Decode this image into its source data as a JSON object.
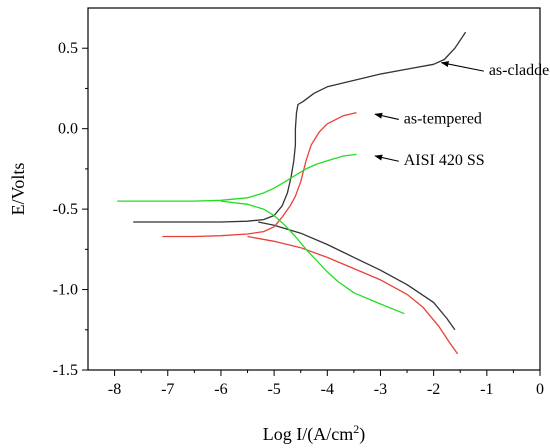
{
  "chart_data": {
    "type": "line",
    "title": "",
    "xlabel": "Log I/(A/cm",
    "xlabel_sup": "2",
    "xlabel_tail": ")",
    "ylabel": "E/Volts",
    "xlim": [
      -8.5,
      0
    ],
    "ylim": [
      -1.5,
      0.75
    ],
    "x_ticks": [
      -8,
      -7,
      -6,
      -5,
      -4,
      -3,
      -2,
      -1,
      0
    ],
    "x_tick_labels": [
      "-8",
      "-7",
      "-6",
      "-5",
      "-4",
      "-3",
      "-2",
      "-1",
      "0"
    ],
    "y_ticks": [
      -1.5,
      -1.0,
      -0.5,
      0.0,
      0.5
    ],
    "y_tick_labels": [
      "-1.5",
      "-1.0",
      "-0.5",
      "0.0",
      "0.5"
    ],
    "grid": false,
    "series": [
      {
        "name": "as-cladded",
        "color": "#333333",
        "points": [
          [
            -7.65,
            -0.58
          ],
          [
            -7.0,
            -0.58
          ],
          [
            -6.0,
            -0.58
          ],
          [
            -5.5,
            -0.575
          ],
          [
            -5.2,
            -0.565
          ],
          [
            -5.0,
            -0.54
          ],
          [
            -4.85,
            -0.48
          ],
          [
            -4.75,
            -0.4
          ],
          [
            -4.68,
            -0.3
          ],
          [
            -4.63,
            -0.2
          ],
          [
            -4.6,
            -0.1
          ],
          [
            -4.6,
            0.0
          ],
          [
            -4.58,
            0.1
          ],
          [
            -4.55,
            0.15
          ],
          [
            -4.45,
            0.17
          ],
          [
            -4.25,
            0.22
          ],
          [
            -4.0,
            0.26
          ],
          [
            -3.5,
            0.3
          ],
          [
            -3.0,
            0.34
          ],
          [
            -2.5,
            0.37
          ],
          [
            -2.0,
            0.4
          ],
          [
            -1.8,
            0.43
          ],
          [
            -1.6,
            0.5
          ],
          [
            -1.4,
            0.6
          ],
          null,
          [
            -5.3,
            -0.58
          ],
          [
            -5.0,
            -0.6
          ],
          [
            -4.5,
            -0.65
          ],
          [
            -4.0,
            -0.72
          ],
          [
            -3.5,
            -0.8
          ],
          [
            -3.0,
            -0.88
          ],
          [
            -2.5,
            -0.97
          ],
          [
            -2.0,
            -1.08
          ],
          [
            -1.75,
            -1.18
          ],
          [
            -1.6,
            -1.25
          ]
        ]
      },
      {
        "name": "as-tempered",
        "color": "#e8413a",
        "points": [
          [
            -7.1,
            -0.67
          ],
          [
            -6.5,
            -0.67
          ],
          [
            -6.0,
            -0.665
          ],
          [
            -5.5,
            -0.655
          ],
          [
            -5.2,
            -0.64
          ],
          [
            -5.0,
            -0.61
          ],
          [
            -4.85,
            -0.55
          ],
          [
            -4.7,
            -0.48
          ],
          [
            -4.6,
            -0.42
          ],
          [
            -4.5,
            -0.33
          ],
          [
            -4.4,
            -0.2
          ],
          [
            -4.3,
            -0.1
          ],
          [
            -4.15,
            -0.02
          ],
          [
            -4.0,
            0.03
          ],
          [
            -3.7,
            0.08
          ],
          [
            -3.45,
            0.1
          ],
          null,
          [
            -5.5,
            -0.67
          ],
          [
            -5.0,
            -0.7
          ],
          [
            -4.5,
            -0.74
          ],
          [
            -4.0,
            -0.8
          ],
          [
            -3.5,
            -0.87
          ],
          [
            -3.0,
            -0.94
          ],
          [
            -2.5,
            -1.03
          ],
          [
            -2.2,
            -1.11
          ],
          [
            -1.9,
            -1.23
          ],
          [
            -1.7,
            -1.33
          ],
          [
            -1.55,
            -1.4
          ]
        ]
      },
      {
        "name": "AISI 420 SS",
        "color": "#22dd22",
        "points": [
          [
            -7.95,
            -0.45
          ],
          [
            -7.0,
            -0.45
          ],
          [
            -6.5,
            -0.45
          ],
          [
            -6.0,
            -0.445
          ],
          [
            -5.5,
            -0.43
          ],
          [
            -5.2,
            -0.4
          ],
          [
            -5.0,
            -0.37
          ],
          [
            -4.8,
            -0.33
          ],
          [
            -4.6,
            -0.29
          ],
          [
            -4.4,
            -0.25
          ],
          [
            -4.2,
            -0.22
          ],
          [
            -4.0,
            -0.2
          ],
          [
            -3.7,
            -0.17
          ],
          [
            -3.45,
            -0.16
          ],
          null,
          [
            -6.0,
            -0.45
          ],
          [
            -5.5,
            -0.47
          ],
          [
            -5.2,
            -0.5
          ],
          [
            -5.0,
            -0.54
          ],
          [
            -4.8,
            -0.6
          ],
          [
            -4.6,
            -0.67
          ],
          [
            -4.4,
            -0.75
          ],
          [
            -4.2,
            -0.82
          ],
          [
            -4.0,
            -0.89
          ],
          [
            -3.8,
            -0.95
          ],
          [
            -3.5,
            -1.02
          ],
          [
            -3.0,
            -1.09
          ],
          [
            -2.55,
            -1.15
          ]
        ]
      }
    ],
    "annotations": [
      {
        "text": "as-cladded",
        "tip": [
          -1.85,
          0.41
        ],
        "tail": [
          -1.0,
          0.37
        ]
      },
      {
        "text": "as-tempered",
        "tip": [
          -3.1,
          0.09
        ],
        "tail": [
          -2.6,
          0.07
        ]
      },
      {
        "text": "AISI 420 SS",
        "tip": [
          -3.1,
          -0.17
        ],
        "tail": [
          -2.6,
          -0.19
        ]
      }
    ]
  }
}
